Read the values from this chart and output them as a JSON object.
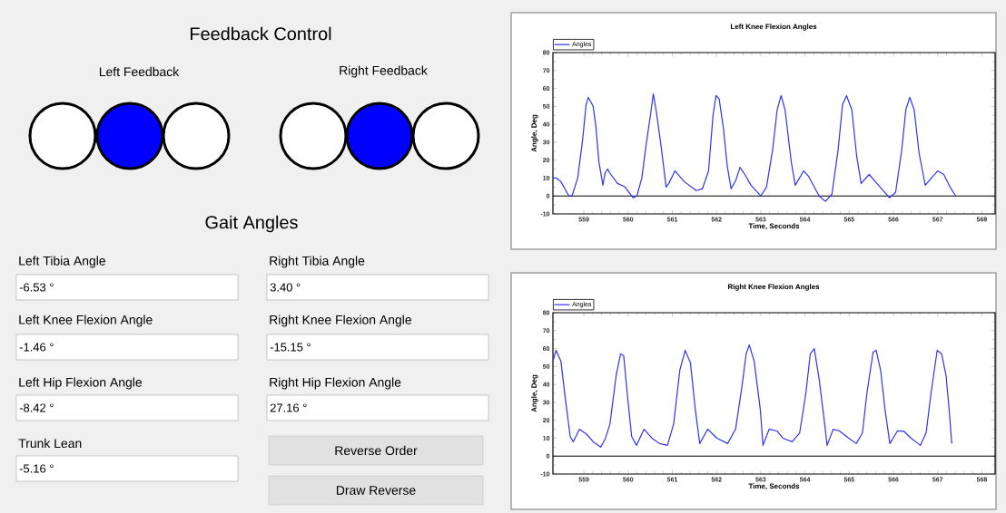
{
  "chart_data": [
    {
      "type": "other",
      "title": "Feedback Control",
      "annotations": [
        "Left Feedback",
        "Right Feedback",
        "Gait Angles",
        "Left Tibia Angle",
        "-6.53 °",
        "Right Tibia Angle",
        "3.40 °",
        "Left Knee Flexion Angle",
        "-1.46 °",
        "Right Knee Flexion Angle",
        "-15.15 °",
        "Left Hip Flexion Angle",
        "-8.42 °",
        "Right Hip Flexion Angle",
        "27.16 °",
        "Trunk Lean",
        "-5.16 °",
        "Reverse Order",
        "Draw Reverse"
      ]
    },
    {
      "type": "line",
      "title": "Left Knee Flexion Angles",
      "xlabel": "Time, Seconds",
      "ylabel": "Angle, Deg",
      "xlim": [
        558.3,
        568.3
      ],
      "ylim": [
        -10,
        80
      ],
      "xticks": [
        559,
        560,
        561,
        562,
        563,
        564,
        565,
        566,
        567,
        568
      ],
      "yticks": [
        -10,
        0,
        10,
        20,
        30,
        40,
        50,
        60,
        70,
        80
      ],
      "legend": "top left",
      "ref_lines": [
        {
          "axis": "y",
          "value": 0,
          "color": "#000000"
        }
      ],
      "series": [
        {
          "name": "Angles",
          "color": "#3333ee",
          "x": [
            558.3,
            558.38,
            558.48,
            558.66,
            558.73,
            558.86,
            558.97,
            559.05,
            559.1,
            559.21,
            559.27,
            559.34,
            559.43,
            559.48,
            559.54,
            559.58,
            559.76,
            559.93,
            560.11,
            560.2,
            560.31,
            560.41,
            560.51,
            560.57,
            560.65,
            560.75,
            560.86,
            560.92,
            561.06,
            561.27,
            561.54,
            561.68,
            561.82,
            561.92,
            561.99,
            562.06,
            562.16,
            562.24,
            562.33,
            562.44,
            562.53,
            562.64,
            562.78,
            563.0,
            563.13,
            563.27,
            563.37,
            563.46,
            563.55,
            563.69,
            563.78,
            563.97,
            564.08,
            564.32,
            564.46,
            564.61,
            564.75,
            564.85,
            564.94,
            565.06,
            565.17,
            565.27,
            565.45,
            565.59,
            565.91,
            566.05,
            566.19,
            566.28,
            566.37,
            566.47,
            566.58,
            566.72,
            566.86,
            567.0,
            567.14,
            567.28,
            567.41
          ],
          "values": [
            10,
            10,
            8,
            0,
            0,
            10,
            31,
            51,
            55,
            50,
            39,
            19,
            6,
            13,
            15,
            13,
            7,
            5,
            -1,
            0,
            10,
            29,
            46,
            57,
            45,
            27,
            5,
            7,
            14,
            8,
            3,
            4,
            14,
            45,
            56,
            54,
            37,
            17,
            4,
            9,
            16,
            12,
            6,
            0,
            5,
            26,
            48,
            56,
            48,
            19,
            6,
            14,
            11,
            0,
            -3,
            1,
            26,
            51,
            56,
            48,
            22,
            7,
            12,
            8,
            -1,
            2,
            26,
            48,
            55,
            48,
            24,
            6,
            10,
            14,
            12,
            5,
            0
          ]
        }
      ]
    },
    {
      "type": "line",
      "title": "Right Knee Flexion Angles",
      "xlabel": "Time, Seconds",
      "ylabel": "Angle, Deg",
      "xlim": [
        558.3,
        568.3
      ],
      "ylim": [
        -10,
        80
      ],
      "xticks": [
        559,
        560,
        561,
        562,
        563,
        564,
        565,
        566,
        567,
        568
      ],
      "yticks": [
        -10,
        0,
        10,
        20,
        30,
        40,
        50,
        60,
        70,
        80
      ],
      "legend": "top left",
      "ref_lines": [
        {
          "axis": "y",
          "value": 0,
          "color": "#000000"
        }
      ],
      "series": [
        {
          "name": "Angles",
          "color": "#3333ee",
          "x": [
            558.3,
            558.37,
            558.48,
            558.58,
            558.69,
            558.76,
            558.9,
            559.07,
            559.21,
            559.38,
            559.49,
            559.59,
            559.73,
            559.83,
            559.9,
            559.98,
            560.08,
            560.19,
            560.36,
            560.54,
            560.71,
            560.89,
            561.03,
            561.17,
            561.29,
            561.41,
            561.52,
            561.62,
            561.8,
            562.01,
            562.25,
            562.43,
            562.57,
            562.67,
            562.74,
            562.85,
            562.99,
            563.05,
            563.19,
            563.37,
            563.5,
            563.71,
            563.88,
            564.02,
            564.12,
            564.21,
            564.32,
            564.43,
            564.5,
            564.64,
            564.78,
            564.99,
            565.16,
            565.3,
            565.4,
            565.54,
            565.61,
            565.71,
            565.81,
            565.92,
            566.09,
            566.23,
            566.4,
            566.61,
            566.74,
            566.85,
            566.99,
            567.09,
            567.19,
            567.26,
            567.32
          ],
          "values": [
            53,
            59,
            53,
            32,
            11,
            8,
            15,
            12,
            8,
            5,
            10,
            18,
            45,
            57,
            56,
            35,
            11,
            6,
            15,
            10,
            7,
            6,
            18,
            48,
            59,
            52,
            26,
            7,
            15,
            10,
            7,
            15,
            38,
            57,
            62,
            53,
            26,
            6,
            15,
            14,
            10,
            8,
            13,
            35,
            57,
            60,
            43,
            21,
            6,
            15,
            14,
            10,
            7,
            13,
            35,
            58,
            59,
            48,
            26,
            7,
            14,
            14,
            10,
            6,
            13,
            35,
            59,
            57,
            45,
            26,
            7
          ]
        }
      ]
    }
  ]
}
